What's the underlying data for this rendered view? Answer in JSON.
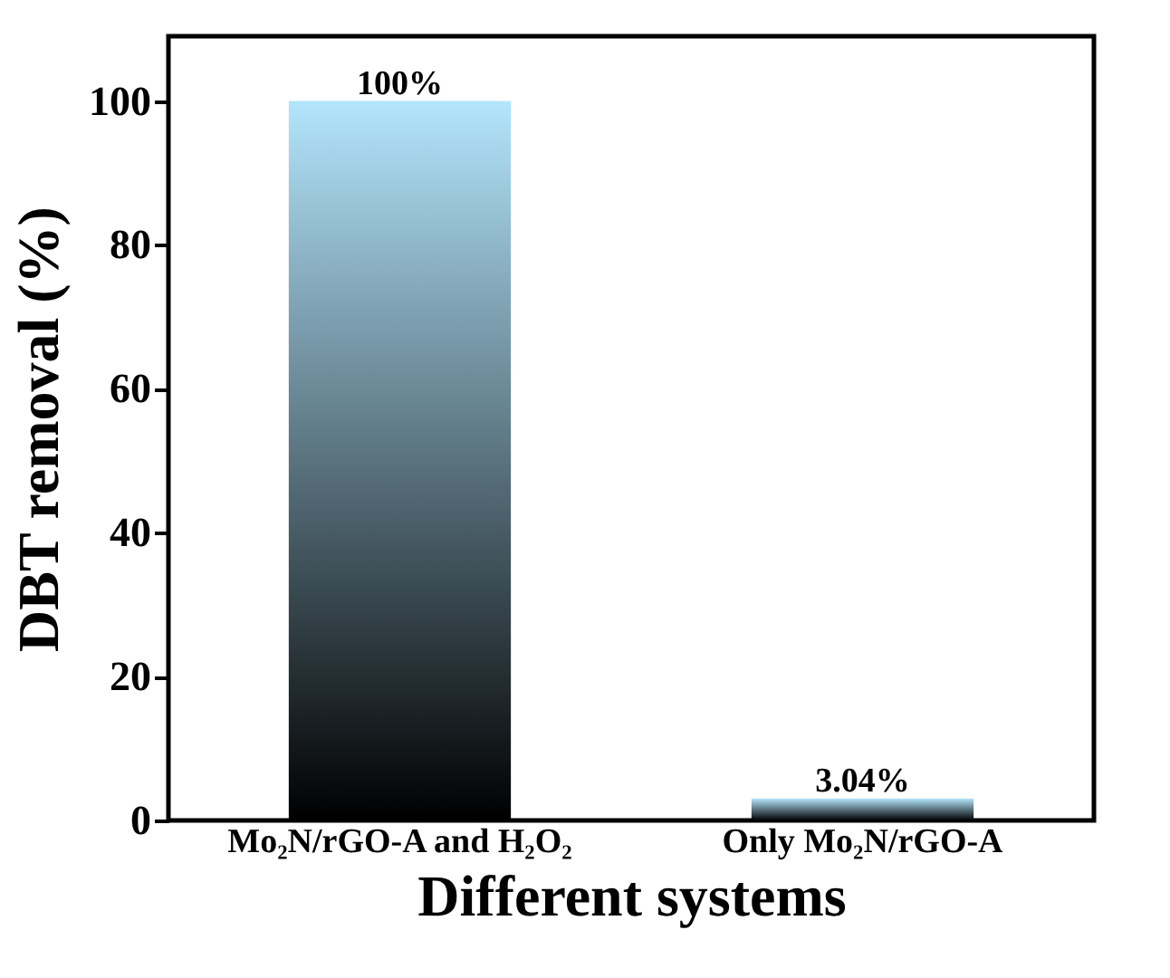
{
  "chart_data": {
    "type": "bar",
    "xlabel": "Different systems",
    "ylabel": "DBT removal (%)",
    "categories": [
      "Mo₂N/rGO-A and H₂O₂",
      "Only Mo₂N/rGO-A"
    ],
    "values": [
      100,
      3.04
    ],
    "value_labels": [
      "100%",
      "3.04%"
    ],
    "color": "#b3e5fc",
    "ylim": [
      0,
      109
    ],
    "yticks": [
      0,
      20,
      40,
      60,
      80,
      100
    ],
    "grid": false
  }
}
